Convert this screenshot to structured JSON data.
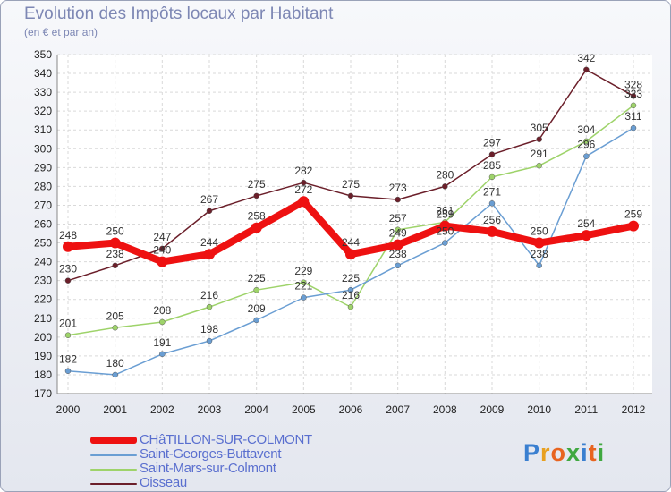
{
  "title": "Evolution des Impôts locaux par Habitant",
  "subtitle": "(en € et par an)",
  "logo": {
    "text": "Proxiti",
    "colors": [
      "#3a7fd0",
      "#e8a020",
      "#e86420",
      "#40a840",
      "#3a7fd0",
      "#e86420",
      "#40a840"
    ]
  },
  "chart_data": {
    "type": "line",
    "x": [
      "2000",
      "2001",
      "2002",
      "2003",
      "2004",
      "2005",
      "2006",
      "2007",
      "2008",
      "2009",
      "2010",
      "2011",
      "2012"
    ],
    "ylim": [
      170,
      350
    ],
    "yticks": [
      170,
      180,
      190,
      200,
      210,
      220,
      230,
      240,
      250,
      260,
      270,
      280,
      290,
      300,
      310,
      320,
      330,
      340,
      350
    ],
    "grid": true,
    "legend": "bottom-left",
    "series": [
      {
        "name": "Oisseau",
        "color": "#6b1f2a",
        "values": [
          230,
          238,
          247,
          267,
          275,
          282,
          275,
          273,
          280,
          297,
          305,
          342,
          328
        ]
      },
      {
        "name": "Saint-Mars-sur-Colmont",
        "color": "#9ed36a",
        "values": [
          201,
          205,
          208,
          216,
          225,
          229,
          216,
          257,
          261,
          285,
          291,
          304,
          323
        ]
      },
      {
        "name": "Saint-Georges-Buttavent",
        "color": "#6a9ed3",
        "values": [
          182,
          180,
          191,
          198,
          209,
          221,
          225,
          238,
          250,
          271,
          238,
          296,
          311
        ]
      },
      {
        "name": "CHâTILLON-SUR-COLMONT",
        "color": "#ee1111",
        "values": [
          248,
          250,
          240,
          244,
          258,
          272,
          244,
          249,
          259,
          256,
          250,
          254,
          259
        ]
      }
    ]
  }
}
